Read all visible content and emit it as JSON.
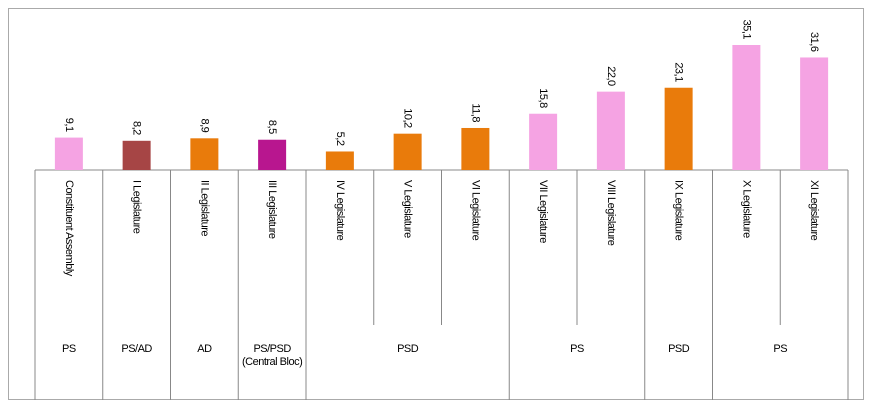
{
  "chart_data": {
    "type": "bar",
    "categories": [
      "Constituent Assembly",
      "I Legislature",
      "II Legislature",
      "III Legislature",
      "IV Legislature",
      "V Legislature",
      "VI Legislature",
      "VII Legislature",
      "VIII Legislature",
      "IX Legislature",
      "X Legislature",
      "XI Legislature"
    ],
    "values": [
      9.1,
      8.2,
      8.9,
      8.5,
      5.2,
      10.2,
      11.8,
      15.8,
      22.0,
      23.1,
      35.1,
      31.6
    ],
    "value_labels": [
      "9,1",
      "8,2",
      "8,9",
      "8,5",
      "5,2",
      "10,2",
      "11,8",
      "15,8",
      "22,0",
      "23,1",
      "35,1",
      "31,6"
    ],
    "colors": [
      "#f5a3e3",
      "#a64545",
      "#e97b0b",
      "#b8168f",
      "#e97b0b",
      "#e97b0b",
      "#e97b0b",
      "#f5a3e3",
      "#f5a3e3",
      "#e97b0b",
      "#f5a3e3",
      "#f5a3e3"
    ],
    "parties": [
      "PS",
      "PS/AD",
      "AD",
      "PS/PSD (Central Bloc)",
      "PSD",
      "PSD",
      "PSD",
      "PS",
      "PS",
      "PSD",
      "PS",
      "PS"
    ]
  }
}
